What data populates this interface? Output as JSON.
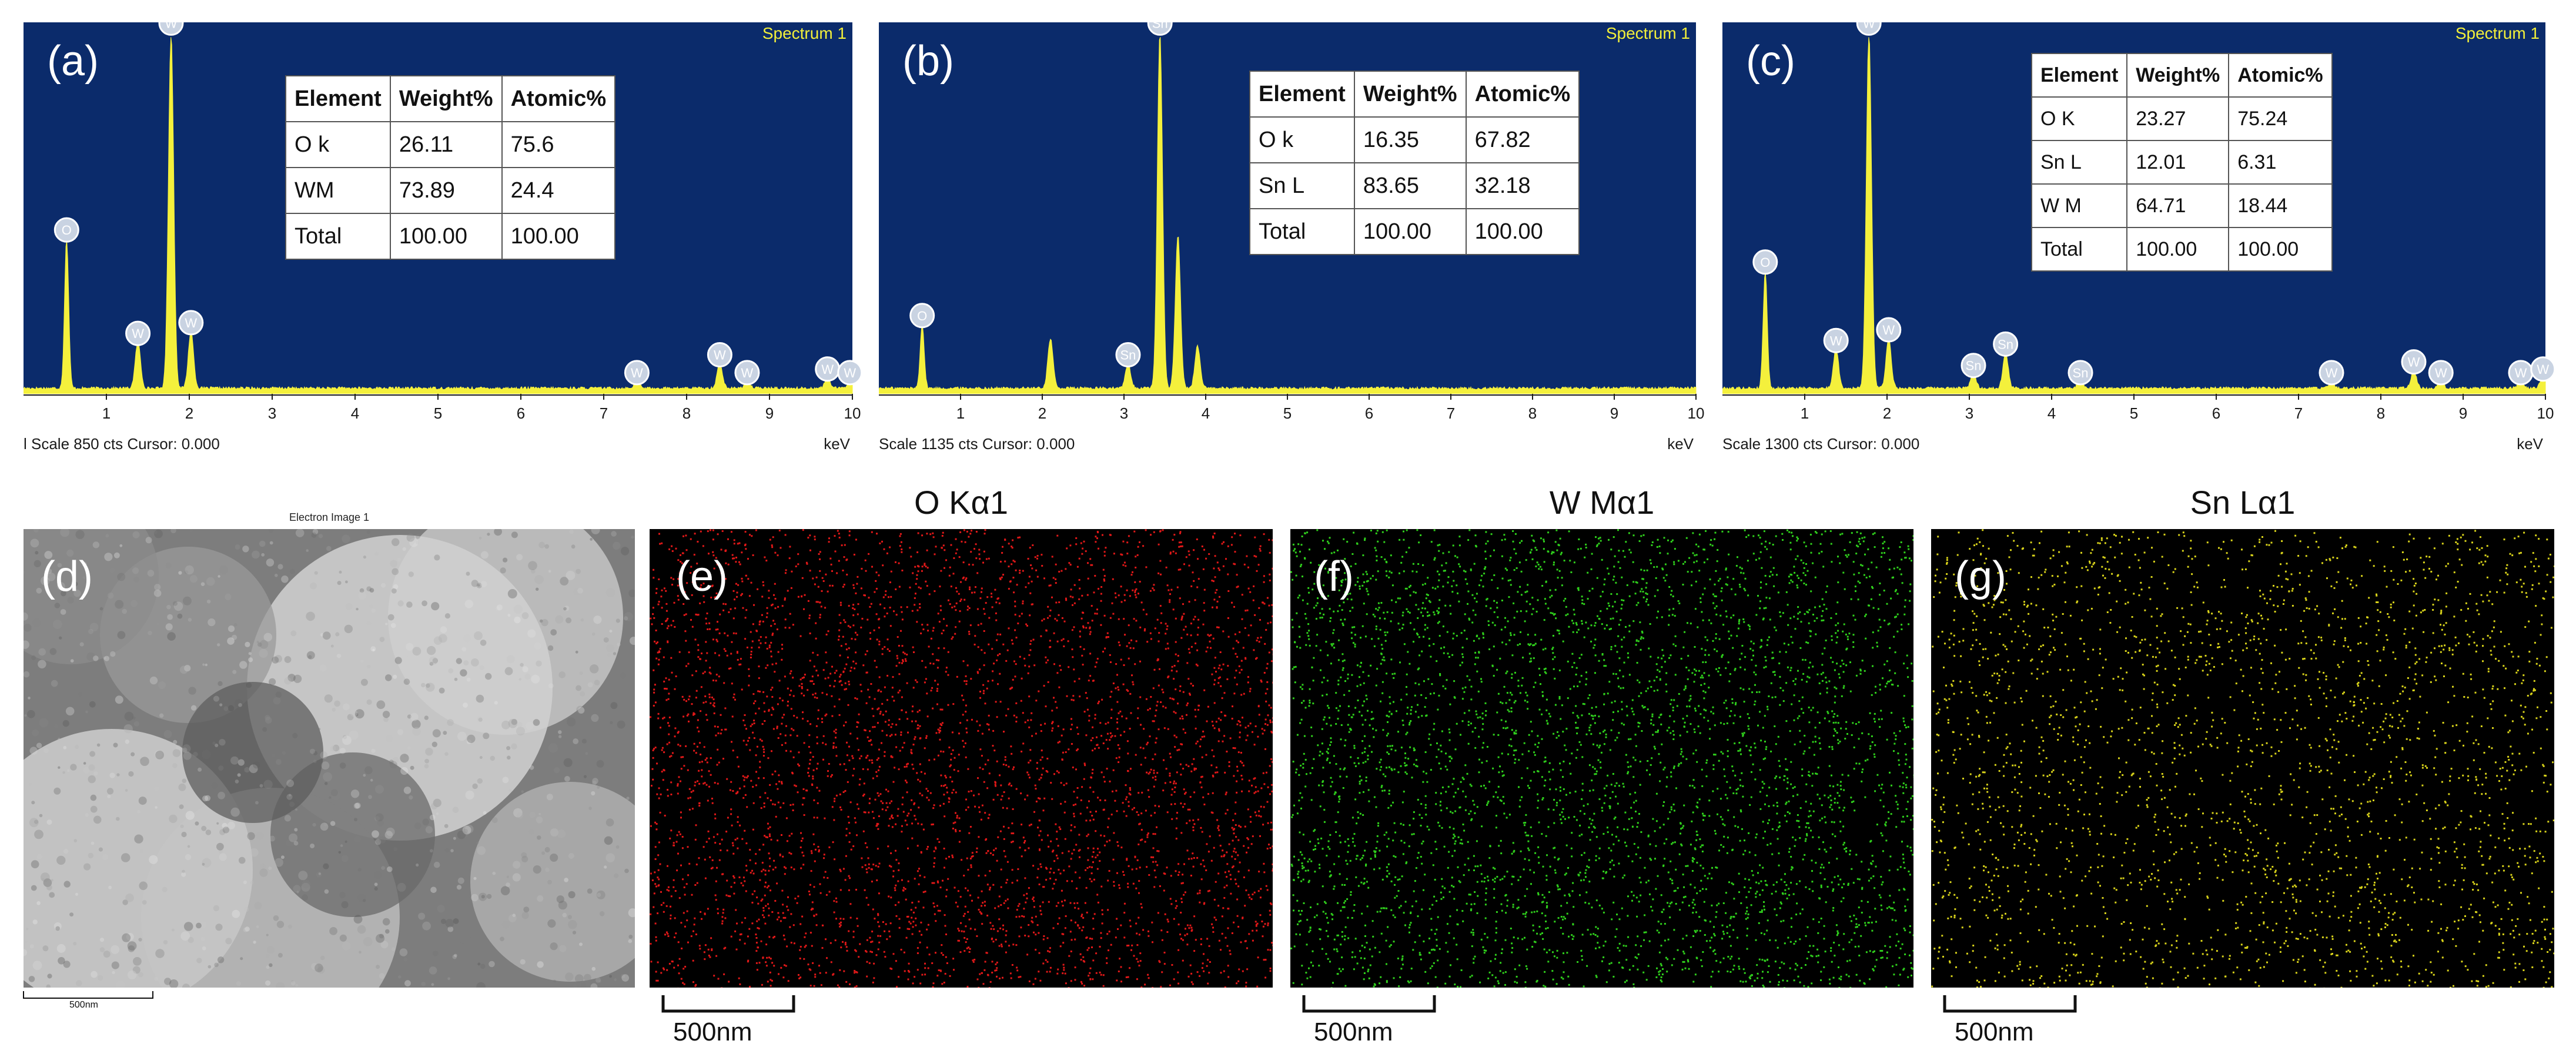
{
  "chart_data": [
    {
      "type": "line",
      "panel": "(a)",
      "title": "Spectrum 1",
      "xlabel": "keV",
      "xlim": [
        0,
        10
      ],
      "xticks": [
        "1",
        "2",
        "3",
        "4",
        "5",
        "6",
        "7",
        "8",
        "9",
        "10"
      ],
      "footer": "l Scale 850 cts Cursor: 0.000",
      "peaks": [
        {
          "label": "O",
          "x": 0.52,
          "h": 0.42
        },
        {
          "label": "W",
          "x": 1.38,
          "h": 0.13
        },
        {
          "label": "W",
          "x": 1.78,
          "h": 1.0
        },
        {
          "label": "W",
          "x": 2.02,
          "h": 0.16
        },
        {
          "label": "W",
          "x": 7.4,
          "h": 0.02
        },
        {
          "label": "W",
          "x": 8.4,
          "h": 0.07
        },
        {
          "label": "W",
          "x": 8.73,
          "h": 0.02
        },
        {
          "label": "W",
          "x": 9.7,
          "h": 0.03
        },
        {
          "label": "W",
          "x": 9.97,
          "h": 0.02
        }
      ],
      "table": {
        "headers": [
          "Element",
          "Weight%",
          "Atomic%"
        ],
        "rows": [
          [
            "O k",
            "26.11",
            "75.6"
          ],
          [
            "WM",
            "73.89",
            "24.4"
          ],
          [
            "Total",
            "100.00",
            "100.00"
          ]
        ]
      }
    },
    {
      "type": "line",
      "panel": "(b)",
      "title": "Spectrum 1",
      "xlabel": "keV",
      "xlim": [
        0,
        10
      ],
      "xticks": [
        "1",
        "2",
        "3",
        "4",
        "5",
        "6",
        "7",
        "8",
        "9",
        "10"
      ],
      "footer": "Scale 1135 cts Cursor: 0.000",
      "peaks": [
        {
          "label": "O",
          "x": 0.53,
          "h": 0.18
        },
        {
          "label": "Sn",
          "x": 3.05,
          "h": 0.07
        },
        {
          "label": "Sn",
          "x": 3.44,
          "h": 1.0
        },
        {
          "label": "",
          "x": 2.1,
          "h": 0.14
        },
        {
          "label": "",
          "x": 3.66,
          "h": 0.43
        },
        {
          "label": "",
          "x": 3.9,
          "h": 0.12
        }
      ],
      "table": {
        "headers": [
          "Element",
          "Weight%",
          "Atomic%"
        ],
        "rows": [
          [
            "O k",
            "16.35",
            "67.82"
          ],
          [
            "Sn L",
            "83.65",
            "32.18"
          ],
          [
            "Total",
            "100.00",
            "100.00"
          ]
        ]
      }
    },
    {
      "type": "line",
      "panel": "(c)",
      "title": "Spectrum 1",
      "xlabel": "keV",
      "xlim": [
        0,
        10
      ],
      "xticks": [
        "1",
        "2",
        "3",
        "4",
        "5",
        "6",
        "7",
        "8",
        "9",
        "10"
      ],
      "footer": "Scale 1300 cts Cursor: 0.000",
      "peaks": [
        {
          "label": "O",
          "x": 0.52,
          "h": 0.33
        },
        {
          "label": "W",
          "x": 1.38,
          "h": 0.11
        },
        {
          "label": "W",
          "x": 1.78,
          "h": 1.0
        },
        {
          "label": "W",
          "x": 2.02,
          "h": 0.14
        },
        {
          "label": "Sn",
          "x": 3.05,
          "h": 0.04
        },
        {
          "label": "Sn",
          "x": 3.44,
          "h": 0.1
        },
        {
          "label": "Sn",
          "x": 4.35,
          "h": 0.02
        },
        {
          "label": "W",
          "x": 7.4,
          "h": 0.02
        },
        {
          "label": "W",
          "x": 8.4,
          "h": 0.05
        },
        {
          "label": "W",
          "x": 8.73,
          "h": 0.02
        },
        {
          "label": "W",
          "x": 9.7,
          "h": 0.02
        },
        {
          "label": "W",
          "x": 9.97,
          "h": 0.03
        }
      ],
      "table": {
        "headers": [
          "Element",
          "Weight%",
          "Atomic%"
        ],
        "rows": [
          [
            "O K",
            "23.27",
            "75.24"
          ],
          [
            "Sn L",
            "12.01",
            "6.31"
          ],
          [
            "W M",
            "64.71",
            "18.44"
          ],
          [
            "Total",
            "100.00",
            "100.00"
          ]
        ]
      }
    }
  ],
  "panels": {
    "a": "(a)",
    "b": "(b)",
    "c": "(c)",
    "d": "(d)",
    "e": "(e)",
    "f": "(f)",
    "g": "(g)"
  },
  "electron_image": {
    "title": "Electron Image 1",
    "scale": "500nm"
  },
  "maps": [
    {
      "title": "O Kα1",
      "scale": "500nm",
      "color": "#e01818"
    },
    {
      "title": "W Mα1",
      "scale": "500nm",
      "color": "#2fcf1c"
    },
    {
      "title": "Sn Lα1",
      "scale": "500nm",
      "color": "#d8d21a"
    }
  ],
  "colors": {
    "spectrum_bg": "#0b2b6b",
    "spectrum_fill": "#f4f03c"
  }
}
